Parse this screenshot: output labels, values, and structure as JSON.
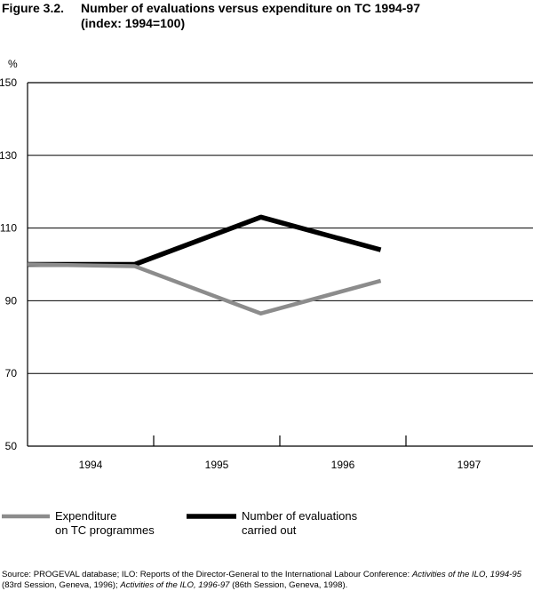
{
  "figure": {
    "number": "Figure 3.2.",
    "title_line1": "Number of evaluations versus expenditure on TC 1994-97",
    "title_line2": "(index: 1994=100)"
  },
  "chart_data": {
    "type": "line",
    "ylabel": "%",
    "ylim": [
      50,
      150
    ],
    "yticks": [
      50,
      70,
      90,
      110,
      130,
      150
    ],
    "categories": [
      "1994",
      "1995",
      "1996",
      "1997"
    ],
    "grid": "horizontal",
    "series": [
      {
        "name": "Number of evaluations carried out",
        "name_lines": [
          "Number of evaluations",
          "carried out"
        ],
        "color": "#000000",
        "x": [
          -0.5,
          0.35,
          1.35,
          2.3
        ],
        "values": [
          100,
          100,
          113,
          104
        ]
      },
      {
        "name": "Expenditure on TC programmes",
        "name_lines": [
          "Expenditure",
          "on TC programmes"
        ],
        "color": "#8c8c8c",
        "x": [
          -0.5,
          0.35,
          1.35,
          2.3
        ],
        "values": [
          100,
          99.5,
          86.5,
          95.5
        ]
      }
    ]
  },
  "source": {
    "prefix": "Source: PROGEVAL database; ILO: Reports of the Director-General to the International Labour Conference: ",
    "ital1": "Activities of the ILO, 1994-95",
    "mid": " (83rd Session, Geneva, 1996); ",
    "ital2": "Activities of the ILO, 1996-97",
    "suffix": " (86th Session, Geneva, 1998)."
  }
}
